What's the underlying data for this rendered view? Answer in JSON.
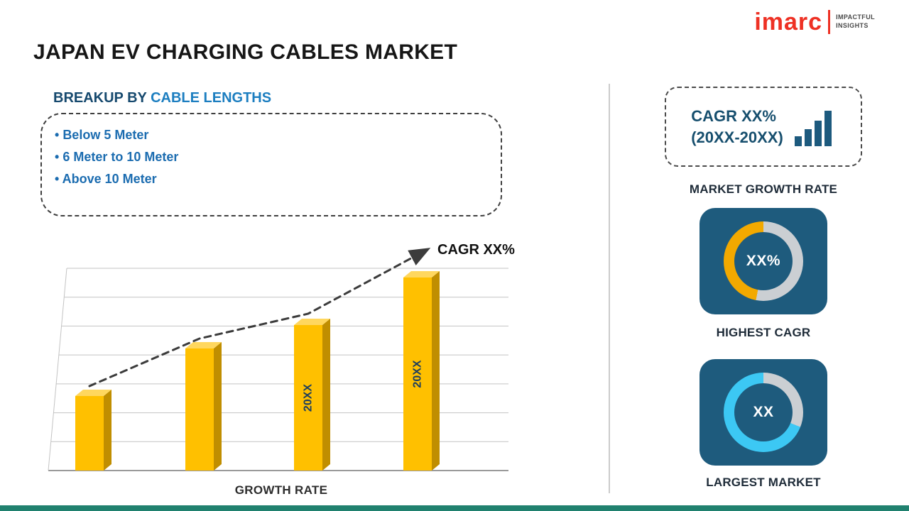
{
  "brand": {
    "logo_text": "imarc",
    "tagline_line1": "IMPACTFUL",
    "tagline_line2": "INSIGHTS",
    "red": "#EE3124"
  },
  "page_title": "JAPAN EV CHARGING CABLES MARKET",
  "left": {
    "breakup_prefix": "BREAKUP BY ",
    "breakup_highlight": "CABLE LENGTHS",
    "items": [
      "Below 5 Meter",
      "6 Meter to 10 Meter",
      "Above 10 Meter"
    ]
  },
  "chart_data": {
    "type": "bar",
    "title": "",
    "categories": [
      "",
      "",
      "20XX",
      "20XX"
    ],
    "values": [
      105,
      172,
      205,
      272
    ],
    "ylim": [
      0,
      285
    ],
    "xlabel": "GROWTH RATE",
    "ylabel": "",
    "grid": true,
    "trend_label": "CAGR XX%",
    "bar_colors": {
      "front": "#FFC000",
      "top": "#FFD75E",
      "side": "#C08E00"
    },
    "label_color": "#1C3E5E",
    "trend_color": "#3C3C3C"
  },
  "right": {
    "cagr_card": {
      "line1": "CAGR XX%",
      "line2": "(20XX-20XX)",
      "caption": "MARKET GROWTH RATE"
    },
    "highest_cagr": {
      "value": "XX%",
      "caption": "HIGHEST CAGR",
      "ring_color": "#F2A900",
      "track_color": "#CBCFD3",
      "filled_pct": 47
    },
    "largest_market": {
      "value": "XX",
      "caption": "LARGEST MARKET",
      "ring_color": "#3CC8F4",
      "track_color": "#CBCFD3",
      "filled_pct": 69
    }
  },
  "colors": {
    "navy_panel": "#1E5B7D",
    "divider": "#CCCCCC",
    "footer_teal": "#20816F",
    "heading_navy": "#16496E",
    "heading_blue": "#1C7EC0",
    "bullet_blue": "#1B6CB0",
    "caption_dark": "#1E2B38",
    "icon_navy": "#1D5A7E"
  }
}
